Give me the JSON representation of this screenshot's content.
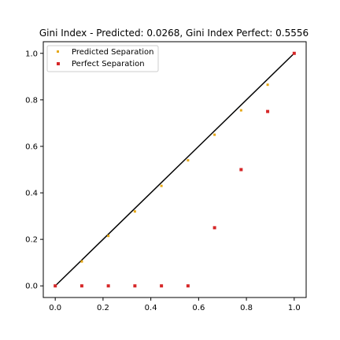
{
  "chart_data": {
    "type": "scatter",
    "title": "Gini Index - Predicted: 0.0268, Gini Index Perfect: 0.5556",
    "xlabel": "",
    "ylabel": "",
    "xlim": [
      -0.05,
      1.05
    ],
    "ylim": [
      -0.05,
      1.05
    ],
    "xticks": [
      0.0,
      0.2,
      0.4,
      0.6,
      0.8,
      1.0
    ],
    "xtick_labels": [
      "0.0",
      "0.2",
      "0.4",
      "0.6",
      "0.8",
      "1.0"
    ],
    "yticks": [
      0.0,
      0.2,
      0.4,
      0.6,
      0.8,
      1.0
    ],
    "ytick_labels": [
      "0.0",
      "0.2",
      "0.4",
      "0.6",
      "0.8",
      "1.0"
    ],
    "grid": false,
    "legend_position": "top-left",
    "reference_line": {
      "x": [
        0,
        1
      ],
      "y": [
        0,
        1
      ],
      "color": "#000000"
    },
    "series": [
      {
        "name": "Predicted Separation",
        "color": "#e6a817",
        "marker": "point",
        "x": [
          0.0,
          0.1111,
          0.2222,
          0.3333,
          0.4444,
          0.5556,
          0.6667,
          0.7778,
          0.8889,
          1.0
        ],
        "y": [
          0.0,
          0.105,
          0.215,
          0.32,
          0.43,
          0.54,
          0.65,
          0.755,
          0.865,
          1.0
        ]
      },
      {
        "name": "Perfect Separation",
        "color": "#d62728",
        "marker": "square",
        "x": [
          0.0,
          0.1111,
          0.2222,
          0.3333,
          0.4444,
          0.5556,
          0.6667,
          0.7778,
          0.8889,
          1.0
        ],
        "y": [
          0.0,
          0.0,
          0.0,
          0.0,
          0.0,
          0.0,
          0.25,
          0.5,
          0.75,
          1.0
        ]
      }
    ]
  }
}
